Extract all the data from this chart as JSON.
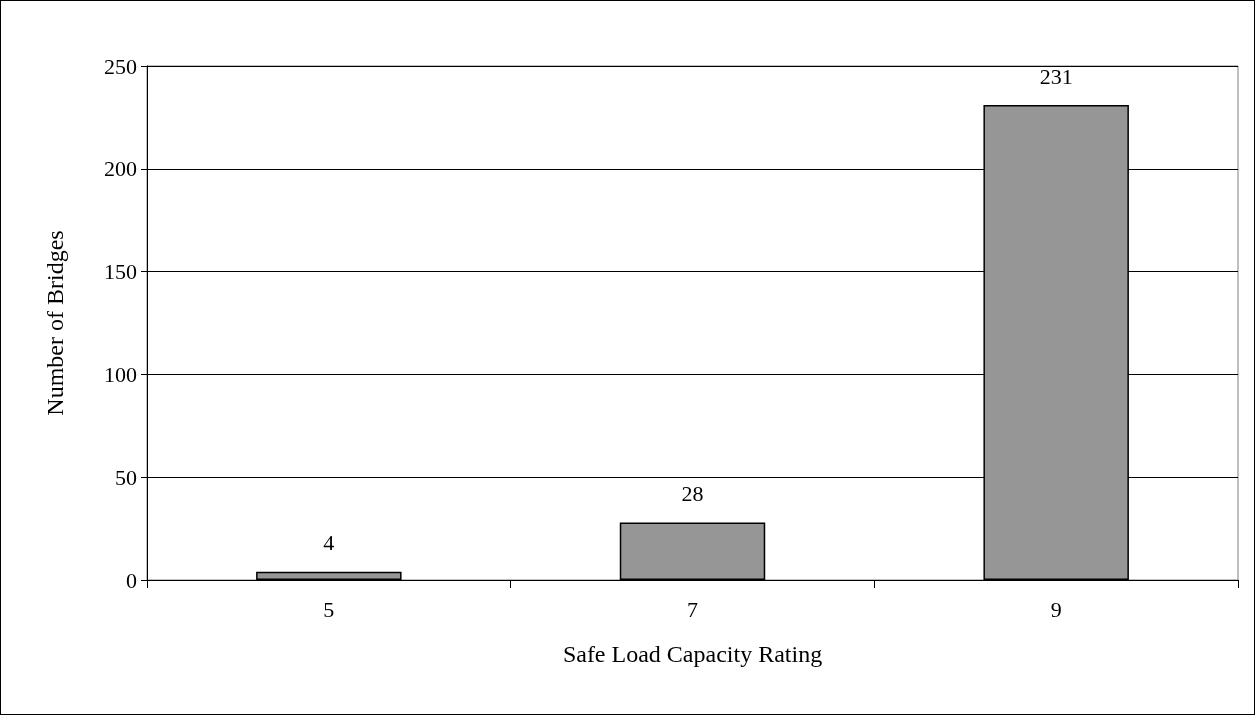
{
  "chart_data": {
    "type": "bar",
    "xlabel": "Safe Load Capacity Rating",
    "ylabel": "Number of Bridges",
    "categories": [
      "5",
      "7",
      "9"
    ],
    "values": [
      4,
      28,
      231
    ],
    "color": "#969696",
    "ylim": [
      0,
      250
    ],
    "yticks": [
      0,
      50,
      100,
      150,
      200,
      250
    ],
    "grid": "y",
    "data_labels": true
  }
}
